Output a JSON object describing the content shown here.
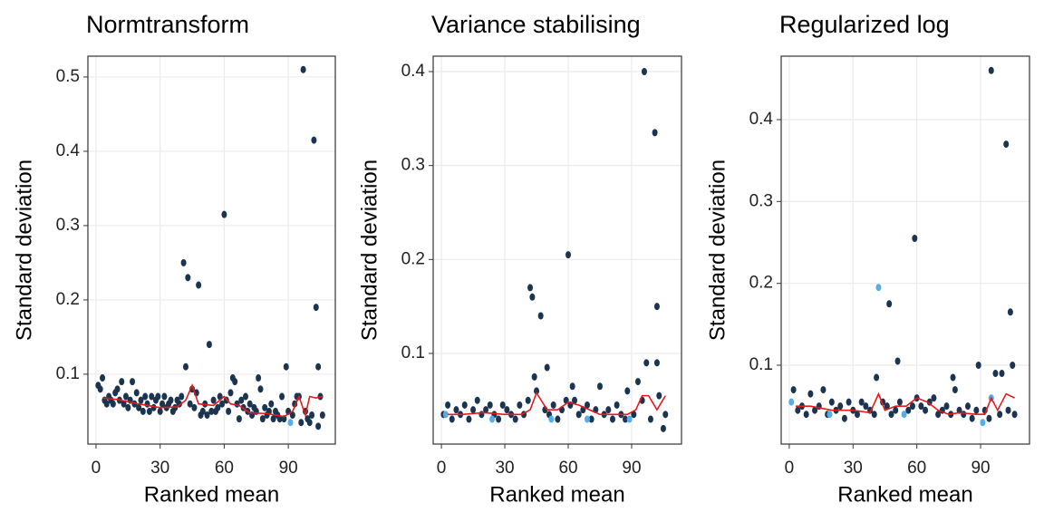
{
  "chart_data": [
    {
      "type": "scatter",
      "title": "Normtransform",
      "xlabel": "Ranked mean",
      "ylabel": "Standard deviation",
      "xlim": [
        -3.8,
        112
      ],
      "ylim": [
        0.006,
        0.528
      ],
      "xticks": [
        0,
        30,
        60,
        90
      ],
      "yticks": [
        0.1,
        0.2,
        0.3,
        0.4,
        0.5
      ],
      "grid": true,
      "series": [
        {
          "color": "#1b3550",
          "x": [
            1,
            2,
            3,
            4,
            5,
            6,
            7,
            8,
            9,
            10,
            11,
            12,
            13,
            14,
            15,
            16,
            17,
            18,
            19,
            20,
            21,
            22,
            23,
            24,
            25,
            26,
            27,
            28,
            29,
            30,
            31,
            32,
            33,
            34,
            35,
            36,
            37,
            38,
            39,
            40,
            41,
            42,
            43,
            44,
            45,
            46,
            47,
            48,
            49,
            50,
            51,
            52,
            53,
            54,
            55,
            56,
            57,
            58,
            59,
            60,
            61,
            62,
            63,
            64,
            65,
            66,
            67,
            68,
            69,
            70,
            71,
            72,
            73,
            74,
            75,
            76,
            77,
            78,
            79,
            80,
            81,
            82,
            83,
            84,
            85,
            86,
            87,
            88,
            89,
            90,
            92,
            93,
            94,
            95,
            96,
            97,
            98,
            99,
            100,
            101,
            102,
            103,
            104,
            105,
            106,
            104
          ],
          "values": [
            0.085,
            0.08,
            0.095,
            0.065,
            0.06,
            0.07,
            0.065,
            0.06,
            0.075,
            0.08,
            0.065,
            0.09,
            0.06,
            0.07,
            0.055,
            0.065,
            0.09,
            0.06,
            0.075,
            0.055,
            0.065,
            0.05,
            0.07,
            0.06,
            0.05,
            0.07,
            0.055,
            0.065,
            0.07,
            0.05,
            0.06,
            0.07,
            0.055,
            0.06,
            0.065,
            0.05,
            0.055,
            0.065,
            0.06,
            0.07,
            0.25,
            0.11,
            0.23,
            0.06,
            0.08,
            0.055,
            0.075,
            0.22,
            0.045,
            0.05,
            0.06,
            0.045,
            0.14,
            0.05,
            0.065,
            0.05,
            0.055,
            0.07,
            0.06,
            0.315,
            0.065,
            0.05,
            0.075,
            0.095,
            0.09,
            0.06,
            0.04,
            0.065,
            0.055,
            0.07,
            0.05,
            0.06,
            0.045,
            0.055,
            0.05,
            0.095,
            0.08,
            0.04,
            0.055,
            0.045,
            0.05,
            0.06,
            0.04,
            0.05,
            0.045,
            0.04,
            0.07,
            0.04,
            0.11,
            0.05,
            0.045,
            0.06,
            0.07,
            0.07,
            0.035,
            0.51,
            0.05,
            0.04,
            0.035,
            0.045,
            0.415,
            0.19,
            0.11,
            0.07,
            0.045,
            0.03
          ]
        },
        {
          "color": "#56aee8",
          "x": [
            91
          ],
          "values": [
            0.035
          ]
        },
        {
          "type": "line",
          "color": "#e41a1c",
          "x": [
            3,
            10,
            20,
            30,
            38,
            42,
            45,
            48,
            55,
            60,
            63,
            67,
            72,
            80,
            88,
            92,
            95,
            98,
            100,
            103,
            106
          ],
          "values": [
            0.068,
            0.066,
            0.06,
            0.055,
            0.056,
            0.065,
            0.085,
            0.06,
            0.058,
            0.07,
            0.06,
            0.058,
            0.048,
            0.047,
            0.043,
            0.05,
            0.07,
            0.045,
            0.07,
            0.068,
            0.07
          ]
        }
      ]
    },
    {
      "type": "scatter",
      "title": "Variance stabilising",
      "xlabel": "Ranked mean",
      "ylabel": "Standard deviation",
      "xlim": [
        -3.9,
        113.6
      ],
      "ylim": [
        0.0035,
        0.4164
      ],
      "xticks": [
        0,
        30,
        60,
        90
      ],
      "yticks": [
        0.1,
        0.2,
        0.3,
        0.4
      ],
      "grid": true,
      "series": [
        {
          "color": "#1b3550",
          "x": [
            1,
            3,
            5,
            7,
            9,
            11,
            13,
            15,
            17,
            19,
            21,
            23,
            25,
            27,
            29,
            31,
            33,
            35,
            37,
            39,
            41,
            42,
            43,
            44,
            45,
            47,
            49,
            50,
            51,
            53,
            55,
            57,
            59,
            60,
            61,
            62,
            63,
            65,
            67,
            69,
            71,
            73,
            75,
            77,
            79,
            81,
            83,
            85,
            87,
            88,
            91,
            93,
            95,
            96,
            97,
            99,
            101,
            102,
            102,
            103,
            105,
            106
          ],
          "values": [
            0.035,
            0.045,
            0.03,
            0.04,
            0.035,
            0.045,
            0.03,
            0.04,
            0.05,
            0.035,
            0.04,
            0.045,
            0.035,
            0.03,
            0.045,
            0.04,
            0.035,
            0.03,
            0.045,
            0.035,
            0.05,
            0.17,
            0.16,
            0.075,
            0.06,
            0.14,
            0.04,
            0.085,
            0.035,
            0.045,
            0.03,
            0.04,
            0.05,
            0.205,
            0.045,
            0.065,
            0.05,
            0.035,
            0.04,
            0.045,
            0.03,
            0.04,
            0.065,
            0.035,
            0.04,
            0.03,
            0.045,
            0.035,
            0.03,
            0.06,
            0.035,
            0.07,
            0.05,
            0.4,
            0.09,
            0.03,
            0.335,
            0.15,
            0.09,
            0.055,
            0.02,
            0.035
          ]
        },
        {
          "color": "#56aee8",
          "x": [
            2,
            24,
            52,
            69,
            89
          ],
          "values": [
            0.035,
            0.03,
            0.03,
            0.03,
            0.03
          ]
        },
        {
          "type": "line",
          "color": "#e41a1c",
          "x": [
            3,
            10,
            20,
            30,
            38,
            42,
            45,
            50,
            55,
            60,
            65,
            70,
            75,
            80,
            88,
            92,
            95,
            98,
            102,
            106
          ],
          "values": [
            0.035,
            0.035,
            0.037,
            0.035,
            0.035,
            0.04,
            0.058,
            0.04,
            0.04,
            0.048,
            0.045,
            0.04,
            0.035,
            0.035,
            0.035,
            0.04,
            0.055,
            0.055,
            0.04,
            0.055
          ]
        }
      ]
    },
    {
      "type": "scatter",
      "title": "Regularized log",
      "xlabel": "Ranked mean",
      "ylabel": "Standard deviation",
      "xlim": [
        -3.8,
        113
      ],
      "ylim": [
        0.0037,
        0.4775
      ],
      "xticks": [
        0,
        30,
        60,
        90
      ],
      "yticks": [
        0.1,
        0.2,
        0.3,
        0.4
      ],
      "grid": true,
      "series": [
        {
          "color": "#1b3550",
          "x": [
            2,
            4,
            6,
            8,
            10,
            12,
            14,
            16,
            18,
            20,
            22,
            24,
            26,
            28,
            30,
            32,
            34,
            36,
            38,
            40,
            41,
            44,
            46,
            47,
            48,
            50,
            51,
            52,
            56,
            58,
            59,
            60,
            62,
            64,
            66,
            68,
            70,
            72,
            74,
            76,
            77,
            78,
            80,
            82,
            84,
            86,
            88,
            89,
            92,
            94,
            95,
            97,
            99,
            100,
            102,
            103,
            104,
            105,
            106
          ],
          "values": [
            0.07,
            0.045,
            0.05,
            0.04,
            0.065,
            0.045,
            0.05,
            0.07,
            0.04,
            0.055,
            0.045,
            0.05,
            0.035,
            0.055,
            0.045,
            0.04,
            0.055,
            0.05,
            0.045,
            0.04,
            0.085,
            0.055,
            0.05,
            0.175,
            0.04,
            0.045,
            0.105,
            0.055,
            0.045,
            0.05,
            0.255,
            0.06,
            0.05,
            0.045,
            0.055,
            0.06,
            0.04,
            0.045,
            0.05,
            0.04,
            0.085,
            0.07,
            0.045,
            0.04,
            0.05,
            0.035,
            0.045,
            0.1,
            0.045,
            0.035,
            0.46,
            0.09,
            0.04,
            0.09,
            0.37,
            0.045,
            0.165,
            0.1,
            0.04
          ]
        },
        {
          "color": "#56aee8",
          "x": [
            1,
            19,
            42,
            54,
            91,
            95
          ],
          "values": [
            0.055,
            0.04,
            0.195,
            0.04,
            0.03,
            0.06
          ]
        },
        {
          "type": "line",
          "color": "#e41a1c",
          "x": [
            3,
            10,
            20,
            30,
            38,
            42,
            45,
            50,
            55,
            60,
            65,
            70,
            75,
            80,
            88,
            92,
            95,
            98,
            102,
            106
          ],
          "values": [
            0.05,
            0.05,
            0.045,
            0.045,
            0.042,
            0.065,
            0.045,
            0.05,
            0.05,
            0.06,
            0.055,
            0.045,
            0.04,
            0.042,
            0.04,
            0.04,
            0.06,
            0.045,
            0.065,
            0.06
          ]
        }
      ]
    }
  ]
}
